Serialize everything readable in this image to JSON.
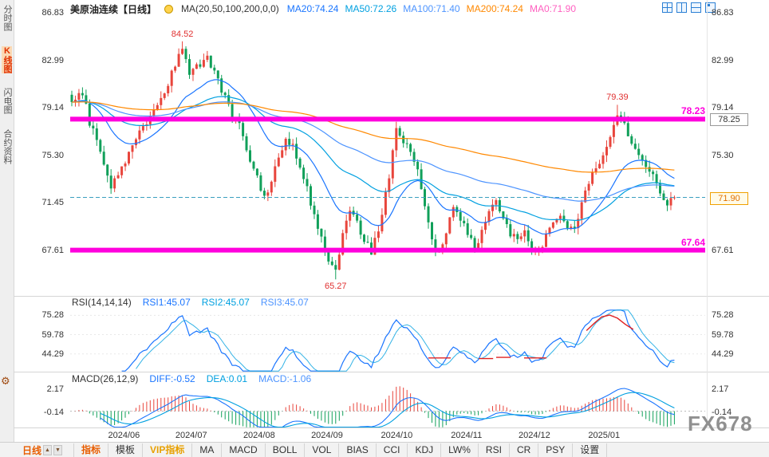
{
  "watermark": "FX678",
  "sidebar": {
    "items": [
      {
        "label": "分时图",
        "name": "time-chart",
        "active": false
      },
      {
        "label": "K线图",
        "name": "kline-chart",
        "active": true
      },
      {
        "label": "闪电图",
        "name": "lightning-chart",
        "active": false
      },
      {
        "label": "合约资料",
        "name": "contract-info",
        "active": false
      }
    ]
  },
  "header": {
    "title": "美原油连续【日线】",
    "ma_param_label": "MA(20,50,100,200,0,0)",
    "ma_values": [
      {
        "label": "MA20:74.24",
        "color": "#1a75ff"
      },
      {
        "label": "MA50:72.26",
        "color": "#00a0e0"
      },
      {
        "label": "MA100:71.40",
        "color": "#4d94ff"
      },
      {
        "label": "MA200:74.24",
        "color": "#ff8800"
      },
      {
        "label": "MA0:71.90",
        "color": "#ff5fc0"
      }
    ]
  },
  "chart_data": {
    "main": {
      "type": "candlestick",
      "title": "美原油连续【日线】",
      "num_candles": 170,
      "y_ticks_left": [
        86.83,
        82.99,
        79.14,
        75.3,
        71.45,
        67.61
      ],
      "y_ticks_right": [
        86.83,
        82.99,
        79.14,
        75.3,
        67.61
      ],
      "y_range": [
        64.0,
        86.96
      ],
      "h_lines": [
        {
          "value": 78.23,
          "label": "78.23",
          "color": "#ff00dd"
        },
        {
          "value": 67.64,
          "label": "67.64",
          "color": "#ff00dd"
        }
      ],
      "current_price": {
        "value": 71.9,
        "label": "71.90"
      },
      "axis_boxes": [
        {
          "label": "78.25",
          "value": 78.25,
          "variant": "plain"
        },
        {
          "label": "71.90",
          "value": 71.9,
          "variant": "orange"
        }
      ],
      "annotations": [
        {
          "label": "84.52",
          "index": 31,
          "value": 84.52,
          "placement": "above"
        },
        {
          "label": "79.39",
          "index": 153,
          "value": 79.39,
          "placement": "above"
        },
        {
          "label": "65.27",
          "index": 74,
          "value": 65.27,
          "placement": "below"
        }
      ],
      "forced_highs": [
        [
          31,
          84.52
        ],
        [
          153,
          79.39
        ]
      ],
      "forced_lows": [
        [
          74,
          65.27
        ]
      ],
      "forced_close": [
        [
          169,
          71.9
        ]
      ],
      "price_path": [
        [
          0,
          79.8
        ],
        [
          3,
          80.3
        ],
        [
          5,
          78.0
        ],
        [
          8,
          75.5
        ],
        [
          11,
          72.9
        ],
        [
          13,
          73.5
        ],
        [
          16,
          75.5
        ],
        [
          19,
          77.5
        ],
        [
          22,
          78.3
        ],
        [
          24,
          79.5
        ],
        [
          27,
          81.2
        ],
        [
          29,
          82.6
        ],
        [
          31,
          83.9
        ],
        [
          33,
          81.8
        ],
        [
          35,
          82.5
        ],
        [
          38,
          83.3
        ],
        [
          40,
          82.0
        ],
        [
          43,
          80.0
        ],
        [
          45,
          78.3
        ],
        [
          47,
          77.8
        ],
        [
          49,
          75.8
        ],
        [
          52,
          73.5
        ],
        [
          54,
          71.9
        ],
        [
          56,
          73.0
        ],
        [
          58,
          75.2
        ],
        [
          60,
          76.8
        ],
        [
          62,
          76.0
        ],
        [
          64,
          74.0
        ],
        [
          66,
          72.5
        ],
        [
          68,
          70.3
        ],
        [
          70,
          68.8
        ],
        [
          72,
          67.0
        ],
        [
          74,
          66.2
        ],
        [
          76,
          68.8
        ],
        [
          78,
          70.9
        ],
        [
          80,
          69.8
        ],
        [
          82,
          68.4
        ],
        [
          84,
          67.6
        ],
        [
          86,
          69.0
        ],
        [
          88,
          72.0
        ],
        [
          90,
          75.5
        ],
        [
          91,
          77.2
        ],
        [
          93,
          76.3
        ],
        [
          95,
          75.6
        ],
        [
          97,
          74.0
        ],
        [
          99,
          71.3
        ],
        [
          101,
          68.5
        ],
        [
          103,
          67.3
        ],
        [
          105,
          69.3
        ],
        [
          107,
          71.2
        ],
        [
          109,
          70.3
        ],
        [
          111,
          68.9
        ],
        [
          113,
          67.9
        ],
        [
          115,
          69.0
        ],
        [
          117,
          70.6
        ],
        [
          119,
          71.9
        ],
        [
          121,
          70.2
        ],
        [
          123,
          68.9
        ],
        [
          125,
          68.4
        ],
        [
          127,
          69.4
        ],
        [
          129,
          67.8
        ],
        [
          131,
          67.4
        ],
        [
          133,
          68.9
        ],
        [
          135,
          70.1
        ],
        [
          137,
          70.4
        ],
        [
          139,
          69.7
        ],
        [
          141,
          69.6
        ],
        [
          143,
          71.3
        ],
        [
          145,
          73.2
        ],
        [
          147,
          74.0
        ],
        [
          149,
          75.2
        ],
        [
          151,
          76.8
        ],
        [
          153,
          78.7
        ],
        [
          155,
          77.6
        ],
        [
          157,
          76.2
        ],
        [
          159,
          75.1
        ],
        [
          161,
          74.4
        ],
        [
          163,
          73.6
        ],
        [
          165,
          72.4
        ],
        [
          167,
          71.2
        ],
        [
          169,
          71.9
        ]
      ],
      "x_labels": [
        {
          "label": "2024/06",
          "pos": 0.086
        },
        {
          "label": "2024/07",
          "pos": 0.197
        },
        {
          "label": "2024/08",
          "pos": 0.309
        },
        {
          "label": "2024/09",
          "pos": 0.421
        },
        {
          "label": "2024/10",
          "pos": 0.536
        },
        {
          "label": "2024/11",
          "pos": 0.651
        },
        {
          "label": "2024/12",
          "pos": 0.763
        },
        {
          "label": "2025/01",
          "pos": 0.878
        }
      ],
      "colors": {
        "up": "#e8453c",
        "down": "#11a05a",
        "ma20": "#1a75ff",
        "ma50": "#00a0e0",
        "ma100": "#4d94ff",
        "ma200": "#ff8800",
        "current_line": "#3a9fbf"
      }
    },
    "rsi": {
      "type": "line",
      "label": "RSI(14,14,14)",
      "period": 14,
      "values": [
        {
          "label": "RSI1:45.07",
          "color": "#1a75ff"
        },
        {
          "label": "RSI2:45.07",
          "color": "#00a0e0"
        },
        {
          "label": "RSI3:45.07",
          "color": "#4d94ff"
        }
      ],
      "y_ticks": [
        75.28,
        59.78,
        44.29
      ],
      "y_range": [
        30,
        80
      ],
      "red_overlays": [
        {
          "points": [
            [
              0.588,
              41
            ],
            [
              0.625,
              41
            ]
          ]
        },
        {
          "points": [
            [
              0.671,
              40.5
            ],
            [
              0.695,
              40.5
            ]
          ]
        },
        {
          "points": [
            [
              0.7,
              41.5
            ],
            [
              0.724,
              41.5
            ]
          ]
        },
        {
          "points": [
            [
              0.746,
              41
            ],
            [
              0.783,
              41
            ]
          ]
        },
        {
          "points": [
            [
              0.849,
              63
            ],
            [
              0.862,
              69
            ],
            [
              0.874,
              74
            ],
            [
              0.887,
              75.5
            ],
            [
              0.9,
              73
            ],
            [
              0.913,
              68
            ],
            [
              0.926,
              64
            ]
          ]
        }
      ]
    },
    "macd": {
      "type": "macd",
      "label": "MACD(26,12,9)",
      "params": {
        "fast": 12,
        "slow": 26,
        "signal": 9
      },
      "values": [
        {
          "label": "DIFF:-0.52",
          "color": "#1a75ff"
        },
        {
          "label": "DEA:0.01",
          "color": "#00a0e0"
        },
        {
          "label": "MACD:-1.06",
          "color": "#4d94ff"
        }
      ],
      "y_ticks": [
        2.17,
        -0.14
      ],
      "y_range": [
        -1.6,
        2.45
      ]
    }
  },
  "bottom_bar": {
    "period_label": "日线",
    "tabs": [
      {
        "label": "指标",
        "name": "indicator",
        "color": "#e85d00"
      },
      {
        "label": "模板",
        "name": "template"
      },
      {
        "label": "VIP指标",
        "name": "vip-indicator",
        "color": "#e8a000"
      },
      {
        "label": "MA",
        "name": "ma"
      },
      {
        "label": "MACD",
        "name": "macd"
      },
      {
        "label": "BOLL",
        "name": "boll"
      },
      {
        "label": "VOL",
        "name": "vol"
      },
      {
        "label": "BIAS",
        "name": "bias"
      },
      {
        "label": "CCI",
        "name": "cci"
      },
      {
        "label": "KDJ",
        "name": "kdj"
      },
      {
        "label": "LW%",
        "name": "lw-percent"
      },
      {
        "label": "RSI",
        "name": "rsi"
      },
      {
        "label": "CR",
        "name": "cr"
      },
      {
        "label": "PSY",
        "name": "psy"
      },
      {
        "label": "设置",
        "name": "settings"
      }
    ]
  }
}
